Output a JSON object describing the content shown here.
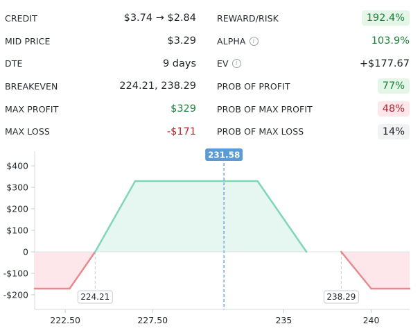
{
  "left_stats": [
    {
      "label": "CREDIT",
      "value": "$3.74 → $2.84",
      "tone": "plain"
    },
    {
      "label": "MID PRICE",
      "value": "$3.29",
      "tone": "plain"
    },
    {
      "label": "DTE",
      "value": "9 days",
      "tone": "plain"
    },
    {
      "label": "BREAKEVEN",
      "value": "224.21, 238.29",
      "tone": "plain"
    },
    {
      "label": "MAX PROFIT",
      "value": "$329",
      "tone": "green"
    },
    {
      "label": "MAX LOSS",
      "value": "-$171",
      "tone": "red"
    }
  ],
  "right_stats": [
    {
      "label": "REWARD/RISK",
      "value": "192.4%",
      "tone": "pill-green",
      "info": false
    },
    {
      "label": "ALPHA",
      "value": "103.9%",
      "tone": "green",
      "info": true
    },
    {
      "label": "EV",
      "value": "+$177.67",
      "tone": "plain",
      "info": true
    },
    {
      "label": "PROB OF PROFIT",
      "value": "77%",
      "tone": "pill-green",
      "info": false
    },
    {
      "label": "PROB OF MAX PROFIT",
      "value": "48%",
      "tone": "pill-red",
      "info": false
    },
    {
      "label": "PROB OF MAX LOSS",
      "value": "14%",
      "tone": "pill-gray",
      "info": false
    }
  ],
  "chart_data": {
    "type": "line",
    "x": [
      220.75,
      222.75,
      224.21,
      226.5,
      233.5,
      236.3,
      238.29,
      240.0,
      242.2
    ],
    "y": [
      -171,
      -171,
      0,
      329,
      329,
      0,
      0,
      -171,
      -171
    ],
    "y_ticks": [
      400,
      300,
      200,
      100,
      0,
      -100,
      -200
    ],
    "y_tick_labels": [
      "$400",
      "$300",
      "$200",
      "$100",
      "0",
      "-$100",
      "-$200"
    ],
    "x_ticks": [
      222.5,
      227.5,
      235,
      240
    ],
    "x_tick_labels": [
      "222.50",
      "227.50",
      "235",
      "240"
    ],
    "breakevens": [
      224.21,
      238.29
    ],
    "breakeven_labels": [
      "224.21",
      "238.29"
    ],
    "current_price": 231.58,
    "current_price_label": "231.58",
    "profit_color": "#7fd7b8",
    "loss_color": "#e58a8f",
    "current_color": "#5b9bd5"
  }
}
